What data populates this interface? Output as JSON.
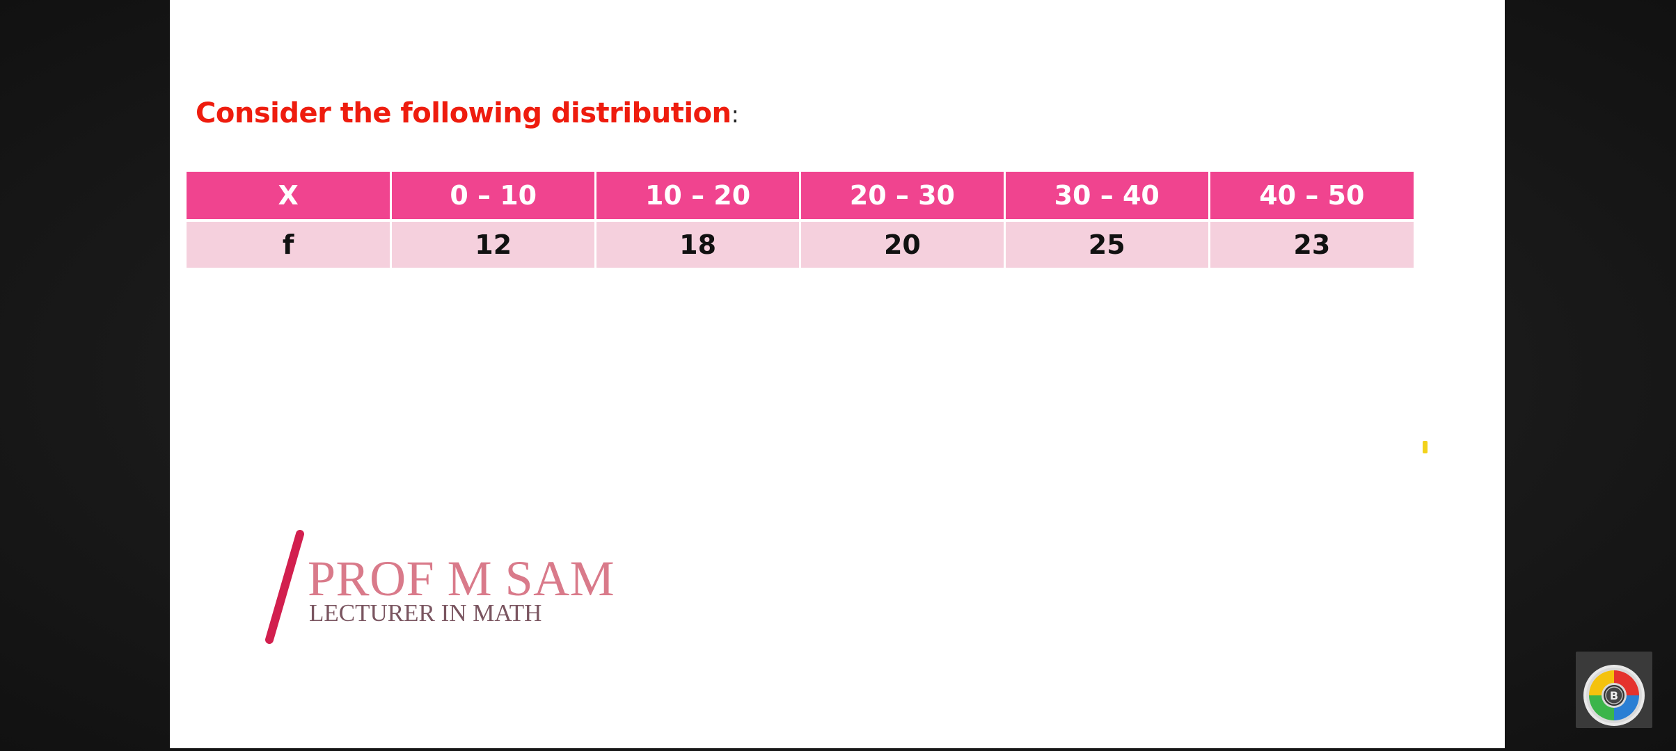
{
  "slide": {
    "heading": "Consider the following distribution",
    "heading_colon": ":"
  },
  "table": {
    "header_label": "X",
    "header_cells": [
      "0 – 10",
      "10 – 20",
      "20 – 30",
      "30 – 40",
      "40 – 50"
    ],
    "row_label": "f",
    "row_cells": [
      "12",
      "18",
      "20",
      "25",
      "23"
    ]
  },
  "logo": {
    "name": "PROF M SAM",
    "subtitle": "LECTURER IN MATH"
  },
  "badge": {
    "letter": "B",
    "icon": "app-badge-icon"
  },
  "colors": {
    "heading": "#ee1c0e",
    "table_header_bg": "#f0448f",
    "table_body_bg": "#f5d0dd",
    "logo_slash": "#d21f4e",
    "logo_name": "#d97a8a"
  }
}
